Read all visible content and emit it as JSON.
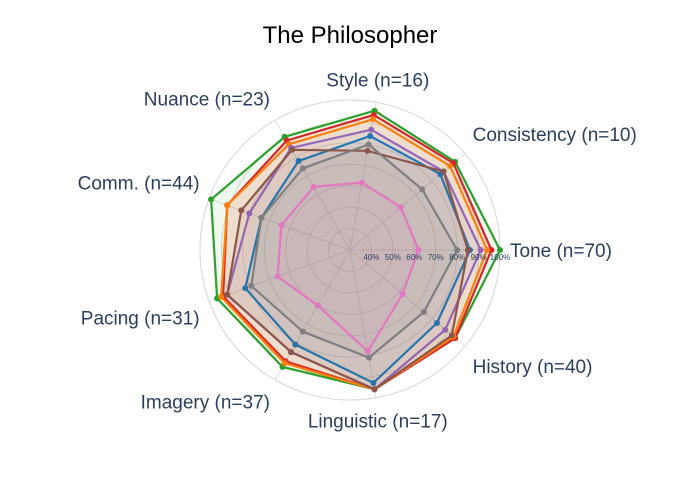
{
  "chart_data": {
    "type": "radar",
    "title": "The Philosopher",
    "axes": [
      "Tone (n=70)",
      "Consistency (n=10)",
      "Style (n=16)",
      "Nuance (n=23)",
      "Comm. (n=44)",
      "Pacing (n=31)",
      "Imagery (n=37)",
      "Linguistic (n=17)",
      "History (n=40)"
    ],
    "radial_range": [
      30,
      100
    ],
    "radial_ticks": [
      "40%",
      "50%",
      "60%",
      "70%",
      "80%",
      "90%",
      "100%"
    ],
    "radial_tick_values": [
      40,
      50,
      60,
      70,
      80,
      90,
      100
    ],
    "series": [
      {
        "color": "#2ca02c",
        "values": [
          100,
          94,
          96,
          91,
          99,
          96,
          93,
          96,
          94
        ]
      },
      {
        "color": "#d62728",
        "values": [
          96,
          93,
          94,
          89,
          91,
          93,
          90,
          96,
          94
        ]
      },
      {
        "color": "#ff7f0e",
        "values": [
          94,
          91,
          92,
          87,
          91,
          94,
          91,
          96,
          93
        ]
      },
      {
        "color": "#9467bd",
        "values": [
          91,
          87,
          87,
          85,
          80,
          91,
          85,
          96,
          88
        ]
      },
      {
        "color": "#1f77b4",
        "values": [
          86,
          85,
          84,
          78,
          74,
          82,
          81,
          93,
          83
        ]
      },
      {
        "color": "#8c564b",
        "values": [
          85,
          87,
          77,
          84,
          84,
          91,
          85,
          96,
          92
        ]
      },
      {
        "color": "#7f7f7f",
        "values": [
          80,
          74,
          80,
          74,
          74,
          79,
          74,
          81,
          75
        ]
      },
      {
        "color": "#e377c2",
        "values": [
          62,
          61,
          62,
          64,
          64,
          66,
          60,
          78,
          62
        ]
      }
    ]
  }
}
